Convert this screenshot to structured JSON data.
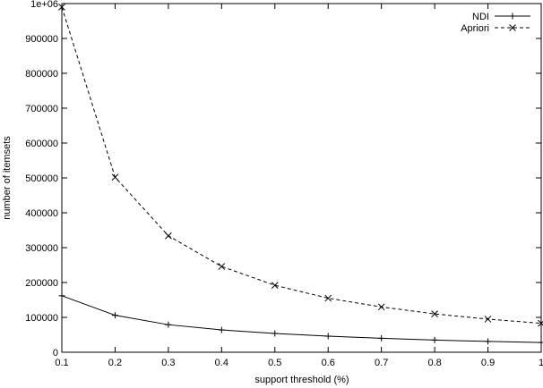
{
  "chart_data": {
    "type": "line",
    "title": "",
    "xlabel": "support threshold (%)",
    "ylabel": "number of itemsets",
    "x": [
      0.1,
      0.2,
      0.3,
      0.4,
      0.5,
      0.6,
      0.7,
      0.8,
      0.9,
      1.0
    ],
    "xlim": [
      0.1,
      1.0
    ],
    "ylim": [
      0,
      1000000
    ],
    "x_ticks": [
      "0.1",
      "0.2",
      "0.3",
      "0.4",
      "0.5",
      "0.6",
      "0.7",
      "0.8",
      "0.9",
      "1"
    ],
    "y_ticks": [
      "0",
      "100000",
      "200000",
      "300000",
      "400000",
      "500000",
      "600000",
      "700000",
      "800000",
      "900000",
      "1e+06"
    ],
    "y_tick_values": [
      0,
      100000,
      200000,
      300000,
      400000,
      500000,
      600000,
      700000,
      800000,
      900000,
      1000000
    ],
    "grid": false,
    "legend_position": "top-right",
    "series": [
      {
        "name": "NDI",
        "marker": "plus",
        "line_style": "solid",
        "values": [
          162000,
          106000,
          79000,
          64000,
          54000,
          46000,
          40000,
          35000,
          31000,
          28000
        ]
      },
      {
        "name": "Apriori",
        "marker": "cross",
        "line_style": "dashed",
        "values": [
          990000,
          502000,
          334000,
          246000,
          192000,
          155000,
          130000,
          110000,
          95000,
          83000
        ]
      }
    ]
  }
}
